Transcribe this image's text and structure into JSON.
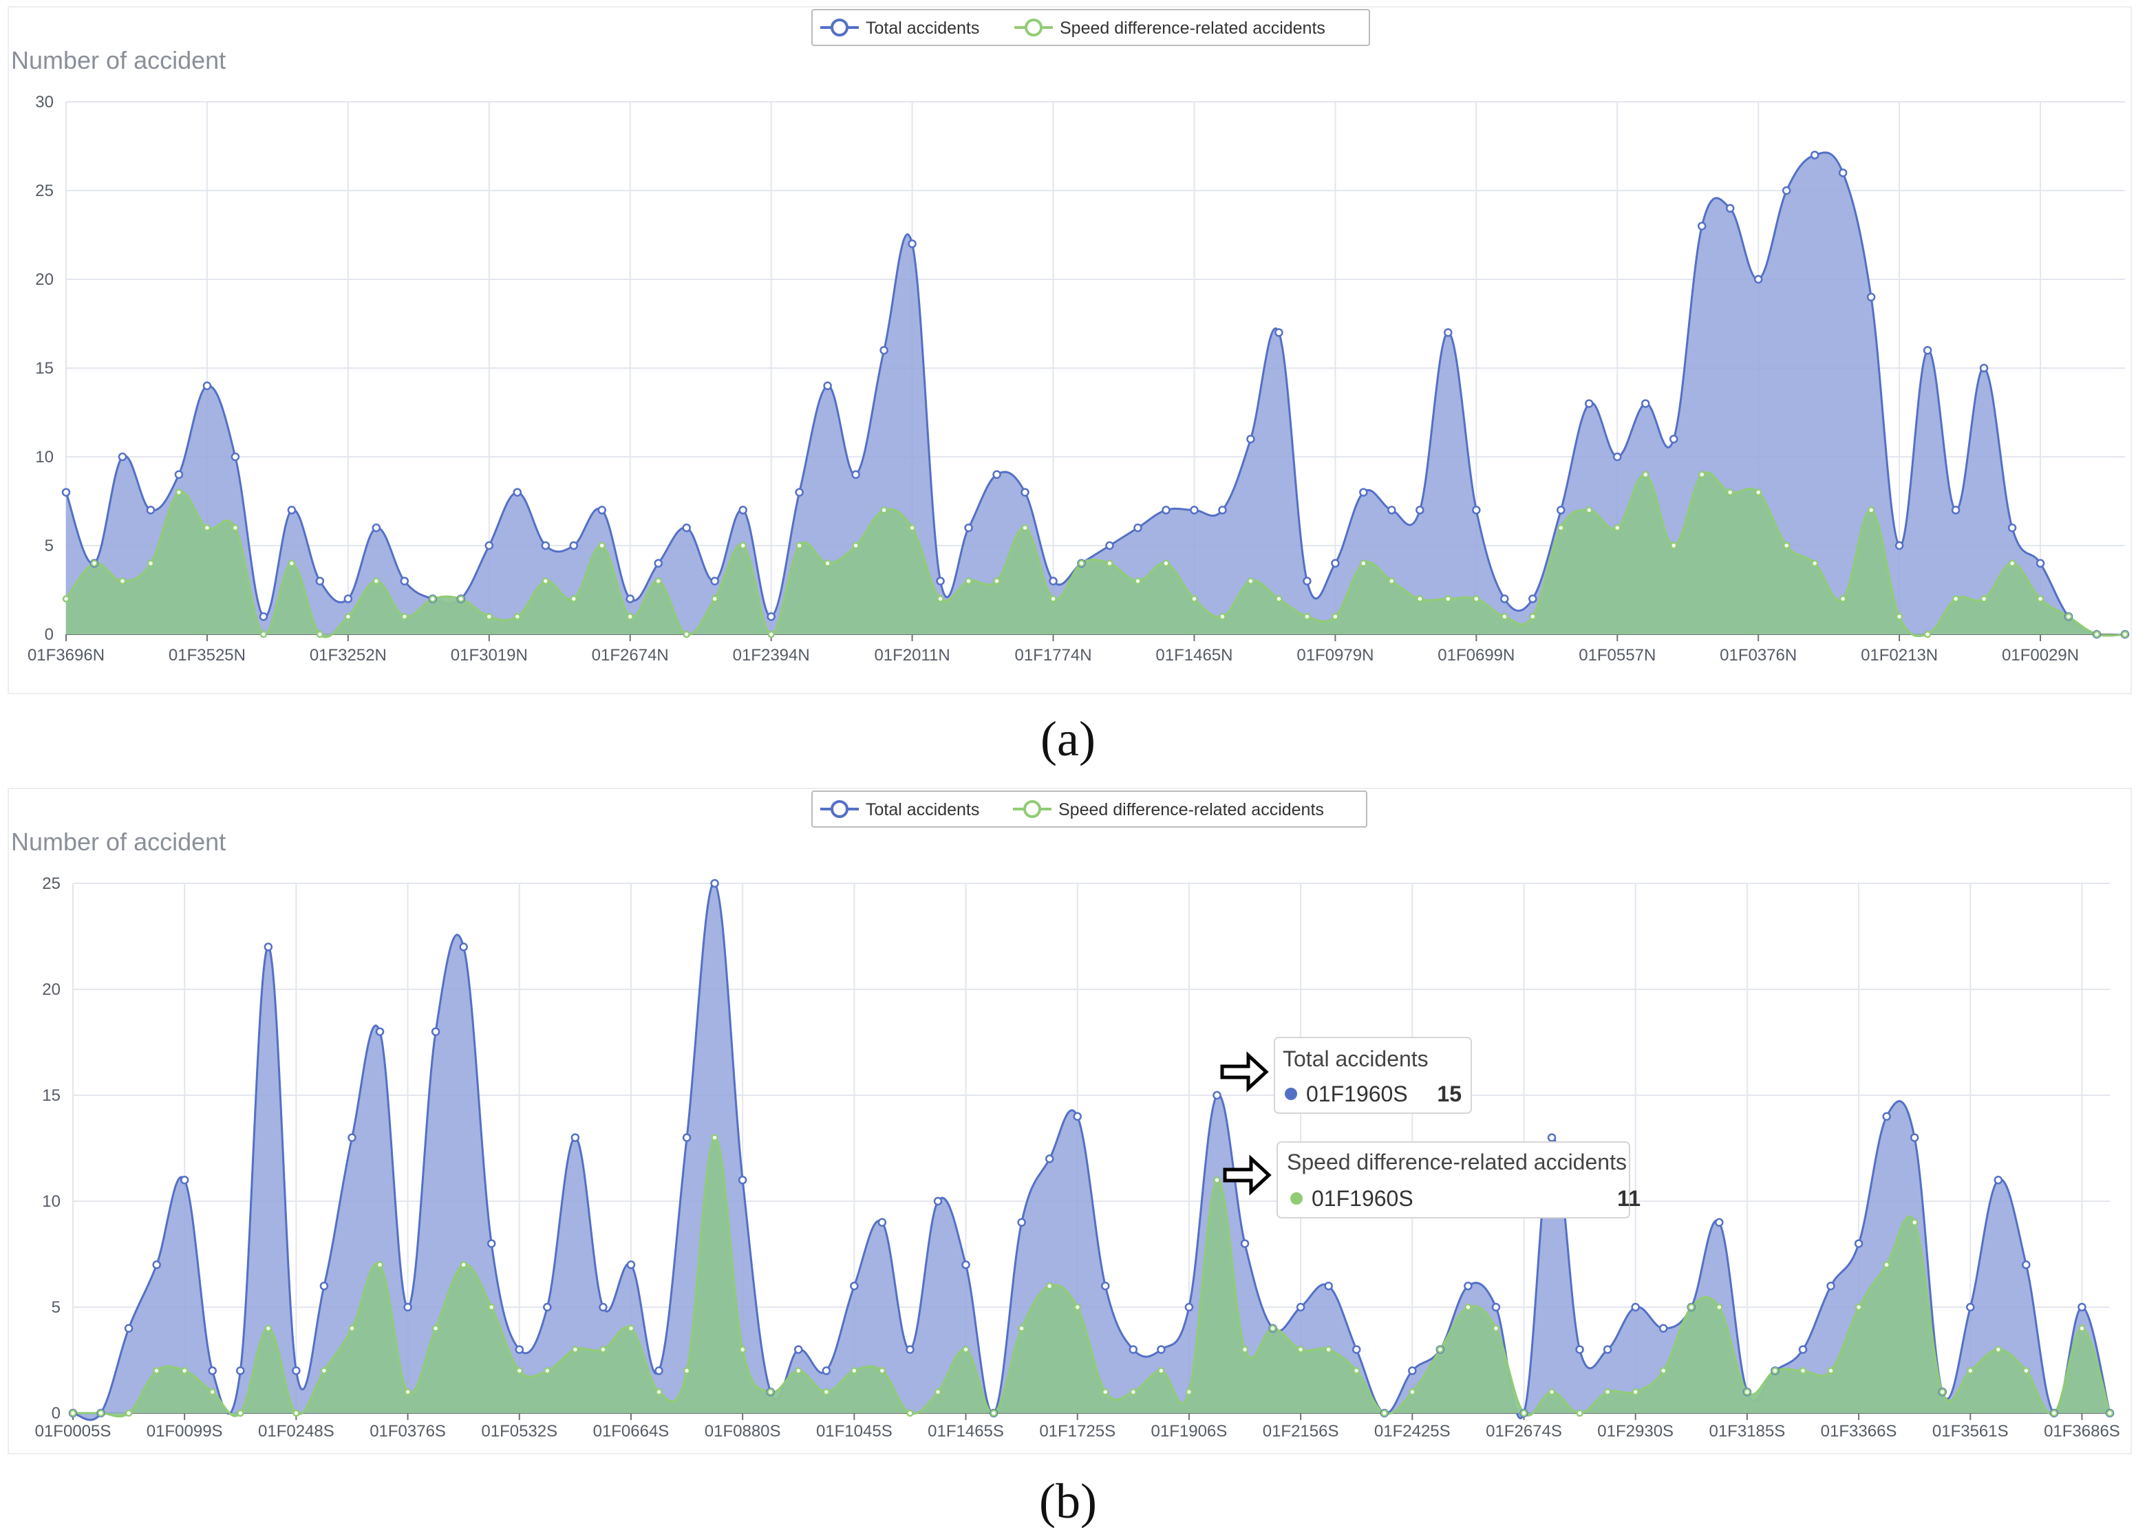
{
  "legend": {
    "total": "Total accidents",
    "speed": "Speed difference-related accidents"
  },
  "colors": {
    "total_line": "#5470c6",
    "total_fill": "#94a6dc",
    "speed_line": "#91cc75",
    "speed_fill": "#8fc594"
  },
  "chart_data": [
    {
      "type": "area",
      "caption": "(a)",
      "ylabel": "Number of accident",
      "ylim": [
        0,
        30
      ],
      "yticks": [
        0,
        5,
        10,
        15,
        20,
        25,
        30
      ],
      "grid": true,
      "legend_position": "top-center",
      "x_tick_labels": [
        "01F3696N",
        "01F3525N",
        "01F3252N",
        "01F3019N",
        "01F2674N",
        "01F2394N",
        "01F2011N",
        "01F1774N",
        "01F1465N",
        "01F0979N",
        "01F0699N",
        "01F0557N",
        "01F0376N",
        "01F0213N",
        "01F0029N"
      ],
      "points_per_label": 5,
      "series": [
        {
          "name": "Total accidents",
          "values": [
            8,
            4,
            10,
            7,
            9,
            14,
            10,
            1,
            7,
            3,
            2,
            6,
            3,
            2,
            2,
            5,
            8,
            5,
            5,
            7,
            2,
            4,
            6,
            3,
            7,
            1,
            8,
            14,
            9,
            16,
            22,
            3,
            6,
            9,
            8,
            3,
            4,
            5,
            6,
            7,
            7,
            7,
            11,
            17,
            3,
            4,
            8,
            7,
            7,
            17,
            7,
            2,
            2,
            7,
            13,
            10,
            13,
            11,
            23,
            24,
            20,
            25,
            27,
            26,
            19,
            5,
            16,
            7,
            15,
            6,
            4,
            1,
            0,
            0
          ]
        },
        {
          "name": "Speed difference-related accidents",
          "values": [
            2,
            4,
            3,
            4,
            8,
            6,
            6,
            0,
            4,
            0,
            1,
            3,
            1,
            2,
            2,
            1,
            1,
            3,
            2,
            5,
            1,
            3,
            0,
            2,
            5,
            0,
            5,
            4,
            5,
            7,
            6,
            2,
            3,
            3,
            6,
            2,
            4,
            4,
            3,
            4,
            2,
            1,
            3,
            2,
            1,
            1,
            4,
            3,
            2,
            2,
            2,
            1,
            1,
            6,
            7,
            6,
            9,
            5,
            9,
            8,
            8,
            5,
            4,
            2,
            7,
            1,
            0,
            2,
            2,
            4,
            2,
            1,
            0,
            0
          ]
        }
      ]
    },
    {
      "type": "area",
      "caption": "(b)",
      "ylabel": "Number of accident",
      "ylim": [
        0,
        25
      ],
      "yticks": [
        0,
        5,
        10,
        15,
        20,
        25
      ],
      "grid": true,
      "legend_position": "top-center",
      "x_tick_labels": [
        "01F0005S",
        "01F0099S",
        "01F0248S",
        "01F0376S",
        "01F0532S",
        "01F0664S",
        "01F0880S",
        "01F1045S",
        "01F1465S",
        "01F1725S",
        "01F1906S",
        "01F2156S",
        "01F2425S",
        "01F2674S",
        "01F2930S",
        "01F3185S",
        "01F3366S",
        "01F3561S",
        "01F3686S"
      ],
      "points_per_label": 4,
      "series": [
        {
          "name": "Total accidents",
          "values": [
            0,
            0,
            4,
            7,
            11,
            2,
            2,
            22,
            2,
            6,
            13,
            18,
            5,
            18,
            22,
            8,
            3,
            5,
            13,
            5,
            7,
            2,
            13,
            25,
            11,
            1,
            3,
            2,
            6,
            9,
            3,
            10,
            7,
            0,
            9,
            12,
            14,
            6,
            3,
            3,
            5,
            15,
            8,
            4,
            5,
            6,
            3,
            0,
            2,
            3,
            6,
            5,
            0,
            13,
            3,
            3,
            5,
            4,
            5,
            9,
            1,
            2,
            3,
            6,
            8,
            14,
            13,
            1,
            5,
            11,
            7,
            0,
            5,
            0
          ]
        },
        {
          "name": "Speed difference-related accidents",
          "values": [
            0,
            0,
            0,
            2,
            2,
            1,
            0,
            4,
            0,
            2,
            4,
            7,
            1,
            4,
            7,
            5,
            2,
            2,
            3,
            3,
            4,
            1,
            2,
            13,
            3,
            1,
            2,
            1,
            2,
            2,
            0,
            1,
            3,
            0,
            4,
            6,
            5,
            1,
            1,
            2,
            1,
            11,
            3,
            4,
            3,
            3,
            2,
            0,
            1,
            3,
            5,
            4,
            0,
            1,
            0,
            1,
            1,
            2,
            5,
            5,
            1,
            2,
            2,
            2,
            5,
            7,
            9,
            1,
            2,
            3,
            2,
            0,
            4,
            0
          ]
        }
      ],
      "tooltips": [
        {
          "title": "Total accidents",
          "station": "01F1960S",
          "value": "15"
        },
        {
          "title": "Speed difference-related accidents",
          "station": "01F1960S",
          "value": "11"
        }
      ]
    }
  ]
}
